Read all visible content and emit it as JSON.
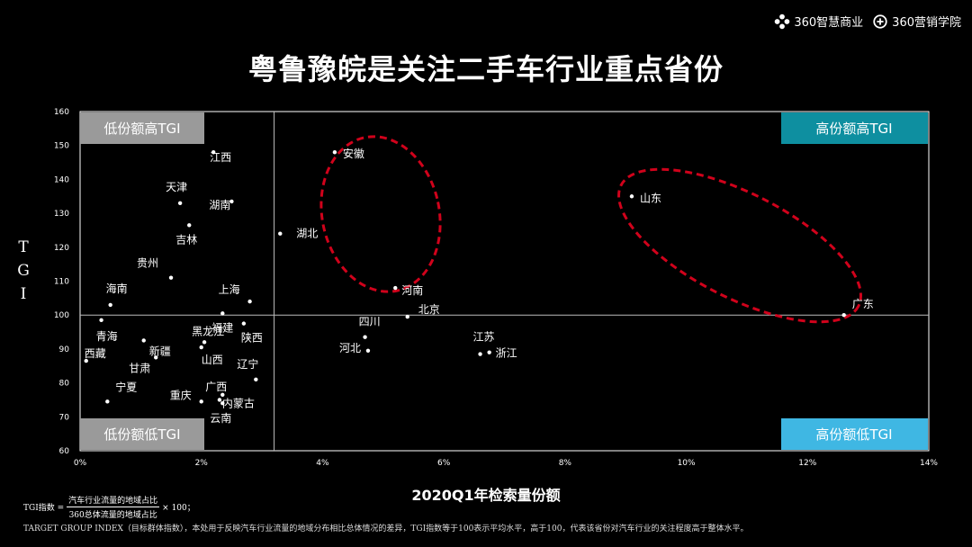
{
  "header": {
    "logo_1_text": "360智慧商业",
    "logo_2_text": "360营销学院"
  },
  "title": "粤鲁豫皖是关注二手车行业重点省份",
  "colors": {
    "background": "#000000",
    "quadrant_top_left": "#9a9a9a",
    "quadrant_top_right": "#0e8fa0",
    "quadrant_bottom_left": "#9a9a9a",
    "quadrant_bottom_right": "#3fb7e3",
    "highlight_ellipse": "#d0021b"
  },
  "chart_data": {
    "type": "scatter",
    "xlabel": "2020Q1年检索量份额",
    "ylabel": "TGI",
    "xlim": [
      0,
      14
    ],
    "ylim": [
      60,
      160
    ],
    "x_ticks": [
      "0%",
      "2%",
      "4%",
      "6%",
      "8%",
      "10%",
      "12%",
      "14%"
    ],
    "y_ticks": [
      "60",
      "70",
      "80",
      "90",
      "100",
      "110",
      "120",
      "130",
      "140",
      "150",
      "160"
    ],
    "reference_lines": {
      "x": 3.2,
      "y": 100
    },
    "quadrants": {
      "top_left": "低份额高TGI",
      "top_right": "高份额高TGI",
      "bottom_left": "低份额低TGI",
      "bottom_right": "高份额低TGI"
    },
    "points": [
      {
        "name": "江西",
        "x": 2.2,
        "y": 148
      },
      {
        "name": "天津",
        "x": 1.65,
        "y": 133
      },
      {
        "name": "湖南",
        "x": 2.5,
        "y": 133.5
      },
      {
        "name": "吉林",
        "x": 1.8,
        "y": 126.5
      },
      {
        "name": "湖北",
        "x": 3.3,
        "y": 124
      },
      {
        "name": "贵州",
        "x": 1.5,
        "y": 111
      },
      {
        "name": "海南",
        "x": 0.5,
        "y": 103
      },
      {
        "name": "上海",
        "x": 2.8,
        "y": 104
      },
      {
        "name": "福建",
        "x": 2.35,
        "y": 100.5
      },
      {
        "name": "青海",
        "x": 0.35,
        "y": 98.5
      },
      {
        "name": "陕西",
        "x": 2.7,
        "y": 97.5
      },
      {
        "name": "黑龙江",
        "x": 2.05,
        "y": 92
      },
      {
        "name": "新疆",
        "x": 1.05,
        "y": 92.5
      },
      {
        "name": "山西",
        "x": 2.0,
        "y": 90.5
      },
      {
        "name": "甘肃",
        "x": 1.25,
        "y": 87.5
      },
      {
        "name": "西藏",
        "x": 0.1,
        "y": 86.5
      },
      {
        "name": "辽宁",
        "x": 2.9,
        "y": 81
      },
      {
        "name": "宁夏",
        "x": 0.45,
        "y": 74.5
      },
      {
        "name": "广西",
        "x": 2.35,
        "y": 76.5
      },
      {
        "name": "重庆",
        "x": 2.0,
        "y": 74.5
      },
      {
        "name": "内蒙古",
        "x": 2.3,
        "y": 75
      },
      {
        "name": "云南",
        "x": 2.35,
        "y": 74
      },
      {
        "name": "安徽",
        "x": 4.2,
        "y": 148
      },
      {
        "name": "河南",
        "x": 5.2,
        "y": 108
      },
      {
        "name": "北京",
        "x": 5.4,
        "y": 99.5
      },
      {
        "name": "四川",
        "x": 4.7,
        "y": 93.5
      },
      {
        "name": "河北",
        "x": 4.75,
        "y": 89.5
      },
      {
        "name": "江苏",
        "x": 6.6,
        "y": 88.5
      },
      {
        "name": "浙江",
        "x": 6.75,
        "y": 89
      },
      {
        "name": "山东",
        "x": 9.1,
        "y": 135
      },
      {
        "name": "广东",
        "x": 12.6,
        "y": 100
      }
    ]
  },
  "formula": {
    "prefix": "TGI指数 =",
    "numerator": "汽车行业流量的地域占比",
    "denominator": "360总体流量的地域占比",
    "suffix": "× 100；"
  },
  "footnote": "TARGET GROUP INDEX（目标群体指数），本处用于反映汽车行业流量的地域分布相比总体情况的差异，TGI指数等于100表示平均水平，高于100，代表该省份对汽车行业的关注程度高于整体水平。"
}
